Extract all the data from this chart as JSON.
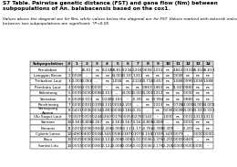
{
  "title": "S7 Table. Pairwise genetic distance (FST) and gene flow (Nm) between subpopulations of An. balabacensis based on the cox1.",
  "subtitle": "Values above the diagonal are for Nm, while values below the diagonal are for FST. Values marked with asterisk indicate the genetic distances\nbetween two subpopulations are significant. *P<0.05",
  "col_headers": [
    "Subpopulation",
    "#",
    "1",
    "2",
    "3",
    "4",
    "5",
    "6",
    "7",
    "8",
    "9",
    "10",
    "11",
    "12",
    "13",
    "14"
  ],
  "row_headers": [
    "Penalaban",
    "Langgan Besar",
    "Timbahan Laut",
    "Pembatu Laut",
    "Kalentong",
    "Sematan",
    "Rinchinong",
    "Semayong\nAgong",
    "Ulu Sugut Laut",
    "Sarnam",
    "Kimanis",
    "Cybele Lama",
    "Pauu",
    "Santai Litu"
  ],
  "row_nums": [
    "1",
    "2",
    "3",
    "4",
    "5",
    "6",
    "7",
    "8",
    "9",
    "10",
    "11",
    "12",
    "13",
    "14"
  ],
  "table_data": [
    [
      "--",
      "18.813",
      "ns",
      "8.234",
      "58.813",
      "8.234",
      "2.204",
      "0.658",
      "1.053",
      "ns",
      "4.863",
      "0.331",
      "58.813",
      "58.813"
    ],
    [
      "0.028",
      "--",
      "ns",
      "ns",
      "24.000",
      "13.333",
      "1.313",
      "ns",
      "ns",
      "ns",
      "0.008",
      "ns",
      "ns",
      "ns"
    ],
    [
      "-0.009",
      "-0.068",
      "--",
      "ns",
      "1.058",
      "ns",
      "2.118",
      "13.718",
      "-0.657",
      "ns",
      "1.588",
      "0.999",
      "1.058",
      "1.588"
    ],
    [
      "0.056",
      "-0.013",
      "0.000",
      "--",
      "ns",
      "ns",
      "ns",
      "0.863",
      "1.963",
      "ns",
      "11.600",
      "0.880",
      "ns",
      "ns"
    ],
    [
      "0.009",
      "0.000",
      "0.098",
      "-0.153",
      "--",
      "24.000",
      "13.000",
      "13.000",
      "1.313",
      "ns",
      "ns",
      "0.000",
      "ns",
      "ns"
    ],
    [
      "0.026",
      "-0.013",
      "ns",
      "0.248",
      "-0.160",
      "--",
      "-0.391",
      "ns",
      "13.994",
      "ns",
      "ns",
      "0.880",
      "ns",
      "ns"
    ],
    [
      "0.000",
      "0.301",
      "0.199",
      "-0.131",
      "0.018",
      "-0.201",
      "--",
      "ns",
      "1.313",
      "ns",
      "0.728",
      "24.000",
      "24.000",
      "24.000"
    ],
    [
      "0.431",
      "0.006",
      "0.034",
      "-0.683",
      "0.036",
      "-0.186",
      "-0.313",
      "--",
      "ns",
      "0.038",
      "0.038",
      "13.000",
      "13.333",
      "13.333"
    ],
    [
      "0.319*",
      "0.319",
      "0.244",
      "0.260*",
      "0.176",
      "0.0356",
      "0.276",
      "0.143",
      "--",
      "1.000",
      "ns",
      "0.001",
      "1.313",
      "1.313"
    ],
    [
      "-0.167",
      "-0.808",
      "-0.167",
      "ns",
      "-0.167",
      "-0.167",
      "-0.167",
      "-0.808",
      "-0.808",
      "--",
      "ns",
      "0.001",
      "ns",
      "ns"
    ],
    [
      "0.201",
      "0.006",
      "0.360",
      "-0.206",
      "-0.008",
      "-0.119",
      "-1.172",
      "-0.766",
      "-0.398",
      "-0.309",
      "--",
      "-0.201",
      "ns",
      "ns"
    ],
    [
      "0.490*",
      "0.400*",
      "0.500",
      "-0.545*",
      "0.580",
      "0.1878",
      "0.1078",
      "-0.150*",
      "0.159*",
      "-0.549*",
      "0.079",
      "--",
      "0.000",
      "0.000"
    ],
    [
      "0.029",
      "0.006",
      "0.360",
      "-0.122",
      "-0.008",
      "-0.006",
      "-0.013",
      "0.036",
      "-0.376",
      "-0.201",
      "0.009",
      "0.469",
      "--",
      "ns"
    ],
    [
      "0.003",
      "0.000",
      "0.360",
      "-0.122",
      "-0.008",
      "-0.008",
      "-0.013",
      "0.036",
      "-0.176",
      "-0.201",
      "0.0000",
      "0.500",
      "0.000",
      "--"
    ]
  ],
  "header_bg": "#d9d9d9",
  "bg_color": "#ffffff",
  "font_size": 3.0,
  "title_font_size": 4.2,
  "subtitle_font_size": 3.2
}
